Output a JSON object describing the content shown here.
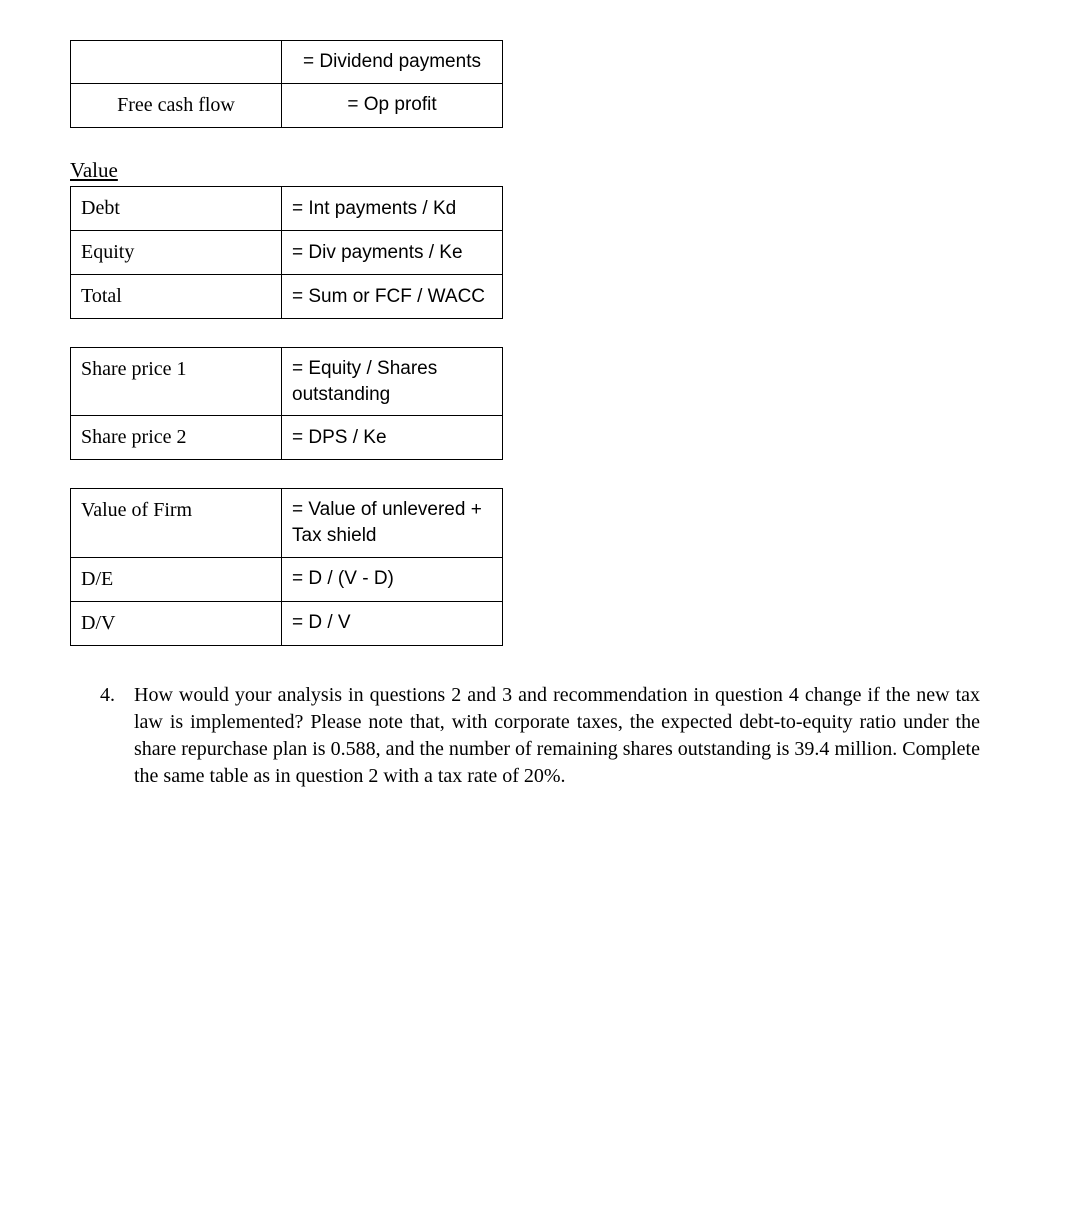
{
  "table1": {
    "rows": [
      {
        "a": "",
        "b": "= Dividend payments"
      },
      {
        "a": "Free cash flow",
        "b": "= Op profit"
      }
    ]
  },
  "section_value": {
    "title": "Value"
  },
  "table2": {
    "rows": [
      {
        "a": "Debt",
        "b": "= Int payments / Kd"
      },
      {
        "a": "Equity",
        "b": "= Div payments / Ke"
      },
      {
        "a": "Total",
        "b": "= Sum or FCF / WACC"
      }
    ]
  },
  "table3": {
    "rows": [
      {
        "a": "Share price 1",
        "b": "= Equity / Shares outstanding"
      },
      {
        "a": "Share price 2",
        "b": "= DPS / Ke"
      }
    ]
  },
  "table4": {
    "rows": [
      {
        "a": "Value of Firm",
        "b": "= Value of unlevered + Tax shield"
      },
      {
        "a": "D/E",
        "b": "= D / (V - D)"
      },
      {
        "a": "D/V",
        "b": "= D / V"
      }
    ]
  },
  "question": {
    "number": "4.",
    "text": "How would your analysis in questions 2 and 3 and recommendation in question 4 change if the new tax law is implemented? Please note that, with corporate taxes, the expected debt-to-equity ratio under the share repurchase plan is 0.588, and the number of remaining shares outstanding is 39.4 million. Complete the same table as in question 2 with a tax rate of 20%."
  }
}
